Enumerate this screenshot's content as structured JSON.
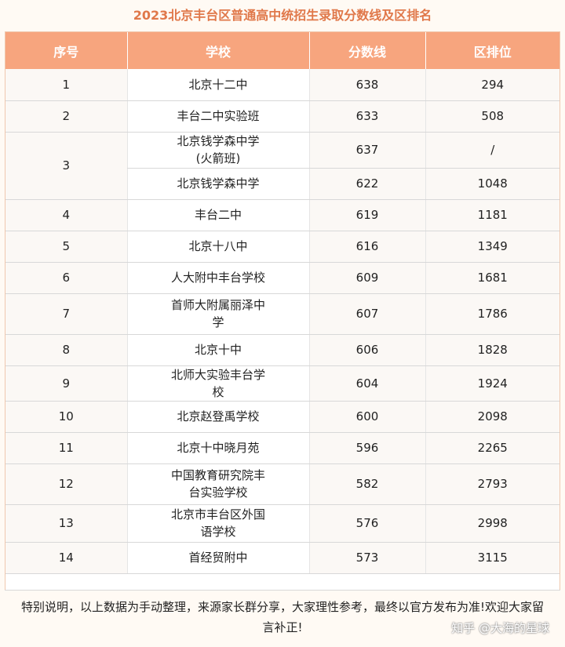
{
  "title": "2023北京丰台区普通高中统招生录取分数线及区排名",
  "headers": [
    "序号",
    "学校",
    "分数线",
    "区排位"
  ],
  "rows": [
    {
      "no": "1",
      "school": "北京十二中",
      "score": "638",
      "rank": "294"
    },
    {
      "no": "2",
      "school": "丰台二中实验班",
      "score": "633",
      "rank": "508"
    },
    {
      "no": "3",
      "school": "北京钱学森中学\n(火箭班)",
      "score": "637",
      "rank": "/"
    },
    {
      "no": "",
      "school": "北京钱学森中学",
      "score": "622",
      "rank": "1048"
    },
    {
      "no": "4",
      "school": "丰台二中",
      "score": "619",
      "rank": "1181"
    },
    {
      "no": "5",
      "school": "北京十八中",
      "score": "616",
      "rank": "1349"
    },
    {
      "no": "6",
      "school": "人大附中丰台学校",
      "score": "609",
      "rank": "1681"
    },
    {
      "no": "7",
      "school": "首师大附属丽泽中\n学",
      "score": "607",
      "rank": "1786"
    },
    {
      "no": "8",
      "school": "北京十中",
      "score": "606",
      "rank": "1828"
    },
    {
      "no": "9",
      "school": "北师大实验丰台学\n校",
      "score": "604",
      "rank": "1924"
    },
    {
      "no": "10",
      "school": "北京赵登禹学校",
      "score": "600",
      "rank": "2098"
    },
    {
      "no": "11",
      "school": "北京十中晓月苑",
      "score": "596",
      "rank": "2265"
    },
    {
      "no": "12",
      "school": "中国教育研究院丰\n台实验学校",
      "score": "582",
      "rank": "2793"
    },
    {
      "no": "13",
      "school": "北京市丰台区外国\n语学校",
      "score": "576",
      "rank": "2998"
    },
    {
      "no": "14",
      "school": "首经贸附中",
      "score": "573",
      "rank": "3115"
    }
  ],
  "note": "特别说明，以上数据为手动整理，来源家长群分享，大家理性参考，最终以官方发布为准!欢迎大家留言补正!",
  "watermark": "知乎 @大海的星球"
}
